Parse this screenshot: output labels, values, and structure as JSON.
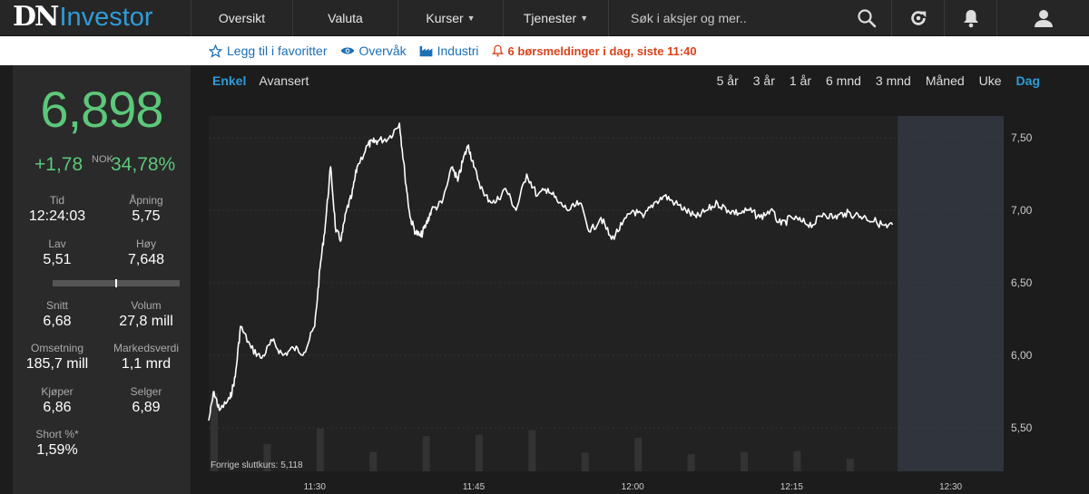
{
  "header": {
    "logo_dn": "DN",
    "logo_investor": "Investor",
    "nav": [
      {
        "label": "Oversikt",
        "dropdown": false
      },
      {
        "label": "Valuta",
        "dropdown": false
      },
      {
        "label": "Kurser",
        "dropdown": true
      },
      {
        "label": "Tjenester",
        "dropdown": true
      }
    ],
    "search_placeholder": "Søk i aksjer og mer..",
    "icons": [
      "search-icon",
      "refresh-icon",
      "bell-icon",
      "user-icon"
    ]
  },
  "subbar": {
    "favorite": "Legg til i favoritter",
    "watch": "Overvåk",
    "industry": "Industri",
    "alert": "6 børsmeldinger i dag, siste 11:40"
  },
  "quote": {
    "price": "6,898",
    "change": "+1,78",
    "currency": "NOK",
    "change_pct": "34,78%",
    "stats": [
      {
        "label": "Tid",
        "value": "12:24:03"
      },
      {
        "label": "Åpning",
        "value": "5,75"
      },
      {
        "label": "Lav",
        "value": "5,51"
      },
      {
        "label": "Høy",
        "value": "7,648"
      },
      {
        "label": "Snitt",
        "value": "6,68"
      },
      {
        "label": "Volum",
        "value": "27,8 mill"
      },
      {
        "label": "Omsetning",
        "value": "185,7 mill"
      },
      {
        "label": "Markedsverdi",
        "value": "1,1 mrd"
      },
      {
        "label": "Kjøper",
        "value": "6,86"
      },
      {
        "label": "Selger",
        "value": "6,89"
      },
      {
        "label": "Short %*",
        "value": "1,59%"
      }
    ],
    "day_range_position": 0.5
  },
  "chart_tabs": [
    {
      "label": "Enkel",
      "active": true
    },
    {
      "label": "Avansert",
      "active": false
    }
  ],
  "periods": [
    {
      "label": "5 år",
      "active": false
    },
    {
      "label": "3 år",
      "active": false
    },
    {
      "label": "1 år",
      "active": false
    },
    {
      "label": "6 mnd",
      "active": false
    },
    {
      "label": "3 mnd",
      "active": false
    },
    {
      "label": "Måned",
      "active": false
    },
    {
      "label": "Uke",
      "active": false
    },
    {
      "label": "Dag",
      "active": true
    }
  ],
  "colors": {
    "up": "#5cc77a",
    "accent": "#2f9bd6",
    "alert": "#d9421b"
  },
  "chart_data": {
    "type": "line",
    "x_range": [
      "11:20",
      "12:35"
    ],
    "ylim": [
      5.2,
      7.65
    ],
    "yticks": [
      "5,50",
      "6,00",
      "6,50",
      "7,00",
      "7,50"
    ],
    "ytick_values": [
      5.5,
      6.0,
      6.5,
      7.0,
      7.5
    ],
    "xticks": [
      "11:30",
      "11:45",
      "12:00",
      "12:15",
      "12:30"
    ],
    "xtick_values": [
      "11:30",
      "11:45",
      "12:00",
      "12:15",
      "12:30"
    ],
    "previous_close_label": "Forrige sluttkurs: 5,118",
    "future_region_start": "12:25",
    "series": [
      {
        "x": [
          "11:20",
          "11:20.5",
          "11:21",
          "11:22",
          "11:22.5",
          "11:23",
          "11:24",
          "11:25",
          "11:26",
          "11:27",
          "11:28",
          "11:29",
          "11:30",
          "11:30.5",
          "11:31",
          "11:31.5",
          "11:32",
          "11:32.5",
          "11:33",
          "11:33.5",
          "11:34",
          "11:35",
          "11:35.5",
          "11:36",
          "11:37",
          "11:38",
          "11:38.5",
          "11:39",
          "11:39.5",
          "11:40",
          "11:40.5",
          "11:41",
          "11:42",
          "11:43",
          "11:43.5",
          "11:44",
          "11:44.5",
          "11:45",
          "11:46",
          "11:47",
          "11:48",
          "11:49",
          "11:50",
          "11:51",
          "11:52",
          "11:53",
          "11:54",
          "11:55",
          "11:56",
          "11:57",
          "11:58",
          "11:59",
          "12:00",
          "12:01",
          "12:02",
          "12:03",
          "12:04",
          "12:05",
          "12:06",
          "12:07",
          "12:08",
          "12:09",
          "12:10",
          "12:11",
          "12:12",
          "12:13",
          "12:14",
          "12:15",
          "12:16",
          "12:17",
          "12:18",
          "12:19",
          "12:20",
          "12:21",
          "12:22",
          "12:23",
          "12:24",
          "12:24.5"
        ],
        "y": [
          5.55,
          5.75,
          5.62,
          5.7,
          5.85,
          6.2,
          6.05,
          5.98,
          6.1,
          6.0,
          6.05,
          6.02,
          6.2,
          6.6,
          6.9,
          7.3,
          6.85,
          6.8,
          7.0,
          7.1,
          7.3,
          7.45,
          7.47,
          7.48,
          7.5,
          7.6,
          7.25,
          6.95,
          6.85,
          6.82,
          6.9,
          7.0,
          7.05,
          7.3,
          7.2,
          7.35,
          7.45,
          7.3,
          7.1,
          7.05,
          7.15,
          7.0,
          7.25,
          7.1,
          7.15,
          7.05,
          7.0,
          7.05,
          6.85,
          6.95,
          6.8,
          6.9,
          7.0,
          6.95,
          7.05,
          7.1,
          7.05,
          7.0,
          6.95,
          7.0,
          7.05,
          7.0,
          6.98,
          7.0,
          6.95,
          7.0,
          6.9,
          6.95,
          6.92,
          6.9,
          6.98,
          6.95,
          6.98,
          6.97,
          6.95,
          6.92,
          6.88,
          6.9
        ]
      }
    ],
    "volume": {
      "x": [
        "11:20",
        "11:25",
        "11:30",
        "11:35",
        "11:40",
        "11:45",
        "11:50",
        "11:55",
        "12:00",
        "12:05",
        "12:10",
        "12:15",
        "12:20"
      ],
      "values": [
        100,
        35,
        55,
        25,
        45,
        47,
        53,
        24,
        43,
        22,
        25,
        26,
        16
      ]
    }
  }
}
